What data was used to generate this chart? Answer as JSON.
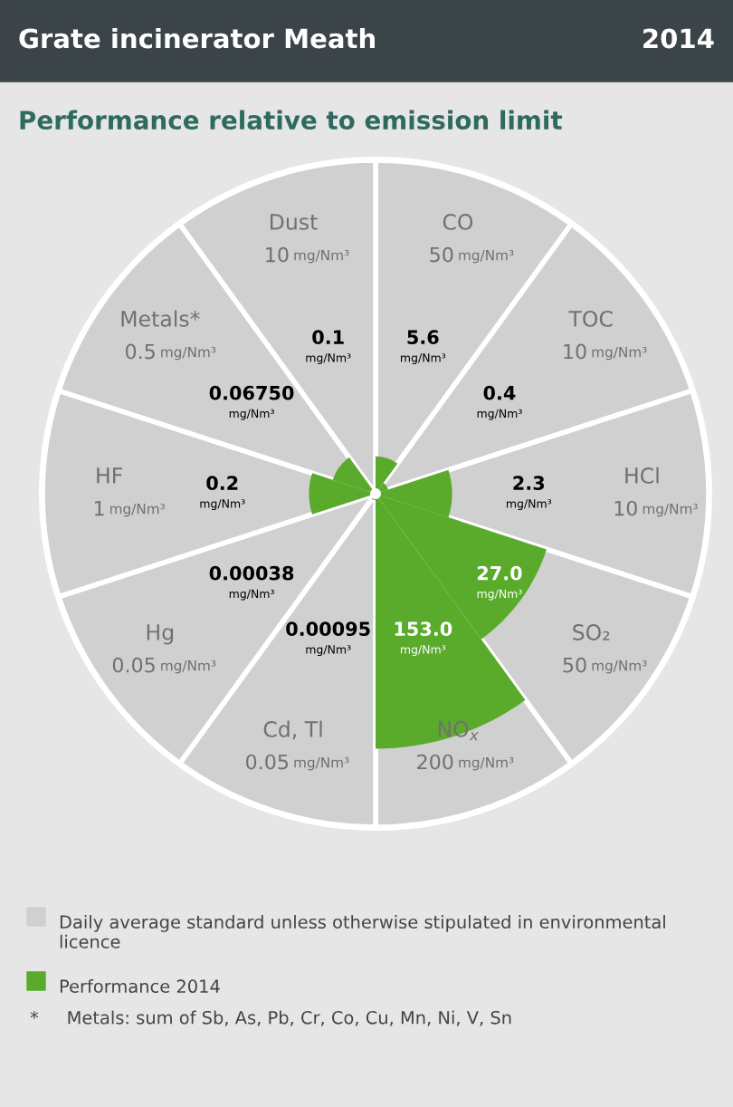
{
  "chart_data": {
    "type": "other",
    "title": "Grate incinerator Meath",
    "subtitle": "Performance relative to emission limit",
    "categories": [
      "CO",
      "TOC",
      "HCl",
      "SO₂",
      "NO$_{x}$",
      "Cd, Tl",
      "Hg",
      "HF",
      "Metals*",
      "Dust"
    ],
    "series": [
      {
        "name": "Daily average standard unless otherwise stipulated in environmental licence",
        "color": "#d0d0d0",
        "values": [
          50,
          10,
          10,
          50,
          200,
          0.05,
          0.05,
          1,
          0.5,
          10
        ],
        "value_labels": [
          "50 mg/Nm³",
          "10 mg/Nm³",
          "10 mg/Nm³",
          "50 mg/Nm³",
          "200 mg/Nm³",
          "0.05 mg/Nm³",
          "0.05 mg/Nm³",
          "1 mg/Nm³",
          "0.5 mg/Nm³",
          "10 mg/Nm³"
        ]
      },
      {
        "name": "Performance 2014",
        "color": "#5aab2c",
        "values": [
          5.6,
          0.4,
          2.3,
          27.0,
          153.0,
          0.00095,
          0.00038,
          0.2,
          0.0675,
          0.1
        ],
        "value_labels": [
          "5.6 mg/Nm³",
          "0.4 mg/Nm³",
          "2.3 mg/Nm³",
          "27.0 mg/Nm³",
          "153.0 mg/Nm³",
          "0.00095 mg/Nm³",
          "0.00038 mg/Nm³",
          "0.2 mg/Nm³",
          "0.06750 mg/Nm³",
          "0.1 mg/Nm³"
        ]
      }
    ],
    "legend": "bottom",
    "annotations": [
      "2014",
      "*     Metals: sum of Sb, As, Pb, Cr, Co, Cu, Mn, Ni, V, Sn"
    ]
  }
}
